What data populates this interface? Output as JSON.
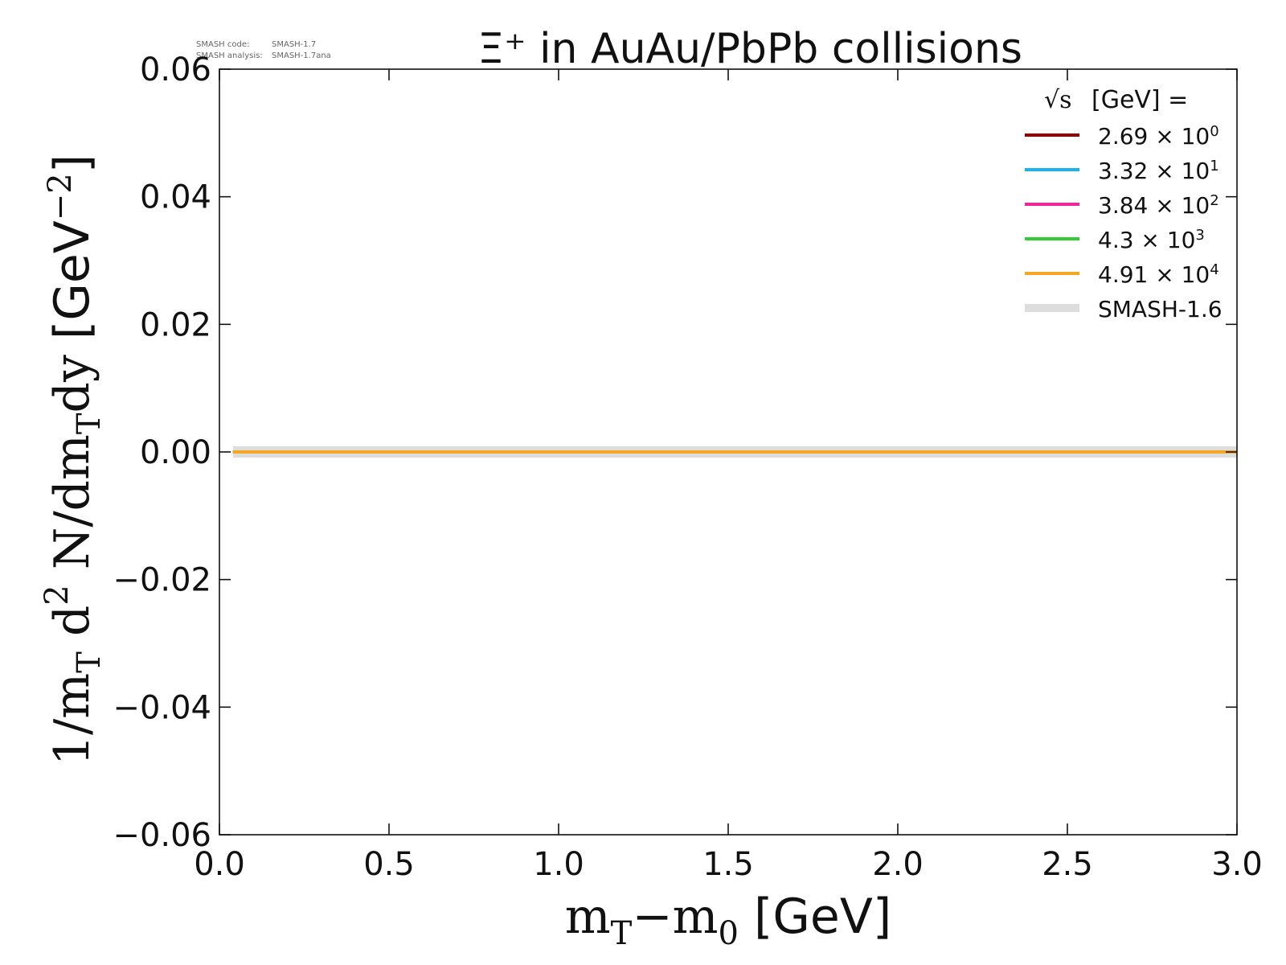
{
  "chart_data": {
    "type": "line",
    "title": "Ξ⁺ in AuAu/PbPb collisions",
    "xlabel": {
      "main": "m",
      "sub1": "T",
      "minus": "−m",
      "sub2": "0",
      "unit": " [GeV]"
    },
    "ylabel": {
      "p1": "1/m",
      "s1": "T",
      "p2": " d",
      "sup": "2",
      "p3": " N/dm",
      "s2": "T",
      "p4": "dy",
      "unit": " [GeV",
      "unit_sup": "−2",
      "unit_close": "]"
    },
    "xlim": [
      0.0,
      3.0
    ],
    "ylim": [
      -0.06,
      0.06
    ],
    "x_ticks": [
      {
        "value": 0.0,
        "label": "0.0"
      },
      {
        "value": 0.5,
        "label": "0.5"
      },
      {
        "value": 1.0,
        "label": "1.0"
      },
      {
        "value": 1.5,
        "label": "1.5"
      },
      {
        "value": 2.0,
        "label": "2.0"
      },
      {
        "value": 2.5,
        "label": "2.5"
      },
      {
        "value": 3.0,
        "label": "3.0"
      }
    ],
    "y_ticks": [
      {
        "value": 0.06,
        "label": "0.06"
      },
      {
        "value": 0.04,
        "label": "0.04"
      },
      {
        "value": 0.02,
        "label": "0.02"
      },
      {
        "value": 0.0,
        "label": "0.00"
      },
      {
        "value": -0.02,
        "label": "−0.02"
      },
      {
        "value": -0.04,
        "label": "−0.04"
      },
      {
        "value": -0.06,
        "label": "−0.06"
      }
    ],
    "grid": false,
    "legend": {
      "placement": "top-right",
      "title_sqrt": "√s",
      "title_rest": "[GeV] ="
    },
    "series": [
      {
        "name": "SMASH-1.6",
        "color": "#dddddd",
        "x": [
          0.04,
          3.0
        ],
        "y": [
          0.0,
          0.0
        ],
        "legend_label": {
          "text": "SMASH-1.6"
        }
      },
      {
        "name": "2.69 × 10⁰",
        "color": "#8b0000",
        "x": [
          0.04,
          3.0
        ],
        "y": [
          0.0,
          0.0
        ],
        "legend_label": {
          "mant": "2.69",
          "exp": "0"
        }
      },
      {
        "name": "3.32 × 10¹",
        "color": "#1ab2f0",
        "x": [
          0.04,
          3.0
        ],
        "y": [
          0.0,
          0.0
        ],
        "legend_label": {
          "mant": "3.32",
          "exp": "1"
        }
      },
      {
        "name": "3.84 × 10²",
        "color": "#f0279b",
        "x": [
          0.04,
          3.0
        ],
        "y": [
          0.0,
          0.0
        ],
        "legend_label": {
          "mant": "3.84",
          "exp": "2"
        }
      },
      {
        "name": "4.3 × 10³",
        "color": "#32cd32",
        "x": [
          0.04,
          3.0
        ],
        "y": [
          0.0,
          0.0
        ],
        "legend_label": {
          "mant": "4.3",
          "exp": "3"
        }
      },
      {
        "name": "4.91 × 10⁴",
        "color": "#f5a623",
        "x": [
          0.04,
          3.0
        ],
        "y": [
          0.0,
          0.0
        ],
        "legend_label": {
          "mant": "4.91",
          "exp": "4"
        }
      }
    ],
    "legend_order": [
      1,
      2,
      3,
      4,
      5,
      0
    ],
    "annotations": {
      "code_label": "SMASH code:",
      "code_value": "SMASH-1.7",
      "analysis_label": "SMASH analysis:",
      "analysis_value": "SMASH-1.7ana"
    }
  }
}
